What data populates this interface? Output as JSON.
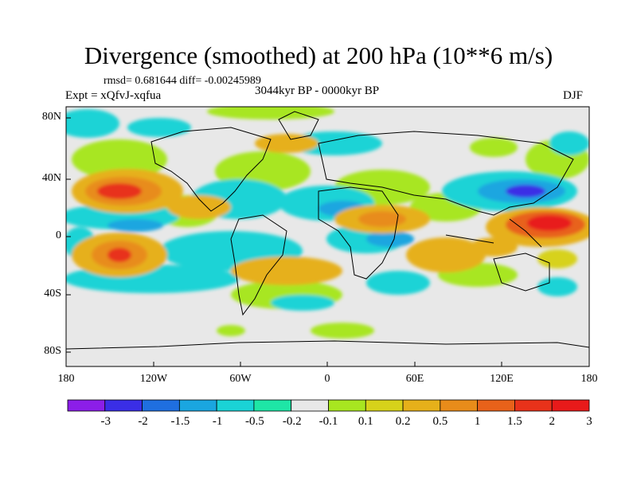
{
  "title": "Divergence (smoothed) at 200 hPa (10**6 m/s)",
  "stats": "rmsd= 0.681644 diff= -0.00245989",
  "experiment": "Expt = xQfvJ-xqfua",
  "period": "3044kyr BP - 0000kyr BP",
  "season": "DJF",
  "lat_ticks": [
    "80N",
    "40N",
    "0",
    "40S",
    "80S"
  ],
  "lon_ticks": [
    "180",
    "120W",
    "60W",
    "0",
    "60E",
    "120E",
    "180"
  ],
  "colorbar": {
    "colors": [
      "#8c1ee8",
      "#3a2ee6",
      "#1f6fe0",
      "#1aa6e0",
      "#1ad3d6",
      "#1ee6a6",
      "#e8e8e8",
      "#a8e620",
      "#d7d21a",
      "#e6b01a",
      "#e88c1a",
      "#e8621a",
      "#e8321a",
      "#e81a1a"
    ],
    "labels": [
      "-3",
      "-2",
      "-1.5",
      "-1",
      "-0.5",
      "-0.2",
      "-0.1",
      "0.1",
      "0.2",
      "0.5",
      "1",
      "1.5",
      "2",
      "3"
    ]
  }
}
